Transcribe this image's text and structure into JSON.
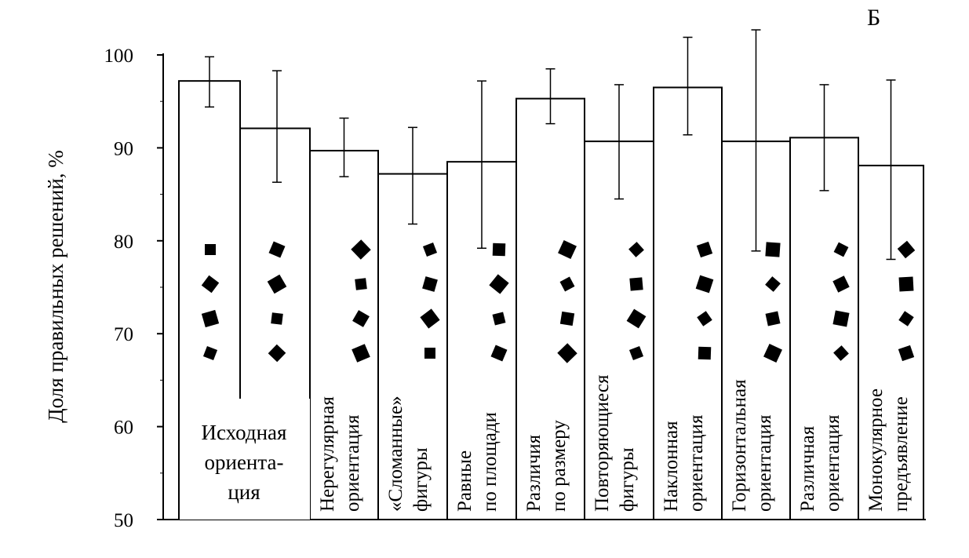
{
  "chart_data": {
    "type": "bar",
    "panel_label": "Б",
    "title": "",
    "xlabel": "",
    "ylabel": "Доля правильных решений, %",
    "ylim": [
      50,
      100
    ],
    "yticks": [
      "50",
      "60",
      "70",
      "80",
      "90",
      "100"
    ],
    "grid": false,
    "categories": [
      "Исходная ориентация (1)",
      "Исходная ориентация (2)",
      "Нерегулярная ориентация",
      "«Сломанные» фигуры",
      "Равные по площади",
      "Различия по размеру",
      "Повторяющиеся фигуры",
      "Наклонная ориентация",
      "Горизонтальная ориентация",
      "Различная ориентация",
      "Монокулярное предъявление"
    ],
    "bar_labels": [
      {
        "lines": [
          "Исходная",
          "ориента-",
          "ция"
        ],
        "orientation": "horizontal",
        "spans": [
          0,
          1
        ]
      },
      {
        "lines": [
          "Нерегулярная",
          "ориентация"
        ],
        "orientation": "vertical",
        "spans": [
          2
        ]
      },
      {
        "lines": [
          "«Сломанные»",
          "фигуры"
        ],
        "orientation": "vertical",
        "spans": [
          3
        ]
      },
      {
        "lines": [
          "Равные",
          "по площади"
        ],
        "orientation": "vertical",
        "spans": [
          4
        ]
      },
      {
        "lines": [
          "Различия",
          "по размеру"
        ],
        "orientation": "vertical",
        "spans": [
          5
        ]
      },
      {
        "lines": [
          "Повторяющиеся",
          "фигуры"
        ],
        "orientation": "vertical",
        "spans": [
          6
        ]
      },
      {
        "lines": [
          "Наклонная",
          "ориентация"
        ],
        "orientation": "vertical",
        "spans": [
          7
        ]
      },
      {
        "lines": [
          "Горизонтальная",
          "ориентация"
        ],
        "orientation": "vertical",
        "spans": [
          8
        ]
      },
      {
        "lines": [
          "Различная",
          "ориентация"
        ],
        "orientation": "vertical",
        "spans": [
          9
        ]
      },
      {
        "lines": [
          "Монокулярное",
          "предъявление"
        ],
        "orientation": "vertical",
        "spans": [
          10
        ]
      }
    ],
    "values": [
      97.2,
      92.1,
      89.7,
      87.2,
      88.5,
      95.3,
      90.7,
      96.5,
      90.7,
      91.1,
      88.1
    ],
    "error_upper": [
      99.8,
      98.3,
      93.2,
      92.2,
      97.2,
      98.5,
      96.8,
      101.9,
      102.7,
      96.8,
      97.3
    ],
    "error_lower": [
      94.4,
      86.3,
      86.9,
      81.8,
      79.2,
      92.6,
      84.5,
      91.4,
      78.9,
      85.4,
      78.0
    ]
  }
}
